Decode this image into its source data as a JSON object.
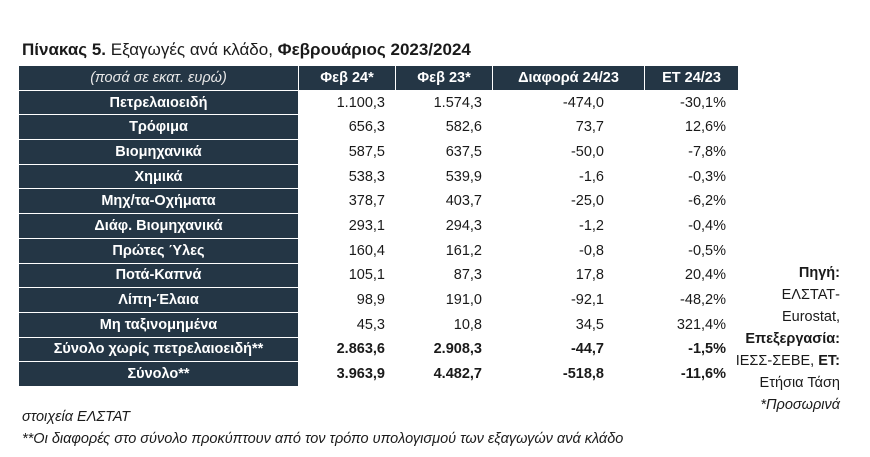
{
  "title": {
    "bold_prefix": "Πίνακας 5.",
    "middle": " Εξαγωγές ανά κλάδο, ",
    "bold_suffix": "Φεβρουάριος 2023/2024"
  },
  "table": {
    "headers": [
      "(ποσά σε εκατ. ευρώ)",
      "Φεβ 24*",
      "Φεβ 23*",
      "Διαφορά 24/23",
      "ΕΤ 24/23"
    ],
    "rows": [
      {
        "label": "Πετρελαιοειδή",
        "feb24": "1.100,3",
        "feb23": "1.574,3",
        "diff": "-474,0",
        "et": "-30,1%"
      },
      {
        "label": "Τρόφιμα",
        "feb24": "656,3",
        "feb23": "582,6",
        "diff": "73,7",
        "et": "12,6%"
      },
      {
        "label": "Βιομηχανικά",
        "feb24": "587,5",
        "feb23": "637,5",
        "diff": "-50,0",
        "et": "-7,8%"
      },
      {
        "label": "Χημικά",
        "feb24": "538,3",
        "feb23": "539,9",
        "diff": "-1,6",
        "et": "-0,3%"
      },
      {
        "label": "Μηχ/τα-Οχήματα",
        "feb24": "378,7",
        "feb23": "403,7",
        "diff": "-25,0",
        "et": "-6,2%"
      },
      {
        "label": "Διάφ. Βιομηχανικά",
        "feb24": "293,1",
        "feb23": "294,3",
        "diff": "-1,2",
        "et": "-0,4%"
      },
      {
        "label": "Πρώτες Ύλες",
        "feb24": "160,4",
        "feb23": "161,2",
        "diff": "-0,8",
        "et": "-0,5%"
      },
      {
        "label": "Ποτά-Καπνά",
        "feb24": "105,1",
        "feb23": "87,3",
        "diff": "17,8",
        "et": "20,4%"
      },
      {
        "label": "Λίπη-Έλαια",
        "feb24": "98,9",
        "feb23": "191,0",
        "diff": "-92,1",
        "et": "-48,2%"
      },
      {
        "label": "Μη ταξινομημένα",
        "feb24": "45,3",
        "feb23": "10,8",
        "diff": "34,5",
        "et": "321,4%"
      },
      {
        "label": "Σύνολο χωρίς πετρελαιοειδή**",
        "feb24": "2.863,6",
        "feb23": "2.908,3",
        "diff": "-44,7",
        "et": "-1,5%"
      },
      {
        "label": "Σύνολο**",
        "feb24": "3.963,9",
        "feb23": "4.482,7",
        "diff": "-518,8",
        "et": "-11,6%"
      }
    ]
  },
  "source_note": {
    "source_label": "Πηγή:",
    "source_value_1": "ΕΛΣΤΑΤ-",
    "source_value_2": "Eurostat,",
    "processing_label": "Επεξεργασία:",
    "processing_value": "ΙΕΣΣ-ΣΕΒΕ,",
    "et_label": "ΕΤ:",
    "et_value": "Ετήσια Τάση",
    "provisional": "*Προσωρινά"
  },
  "footnotes": {
    "data_source": "στοιχεία ΕΛΣΤΑΤ",
    "totals_note": "**Οι διαφορές στο σύνολο προκύπτουν από τον τρόπο υπολογισμού των εξαγωγών ανά κλάδο"
  }
}
